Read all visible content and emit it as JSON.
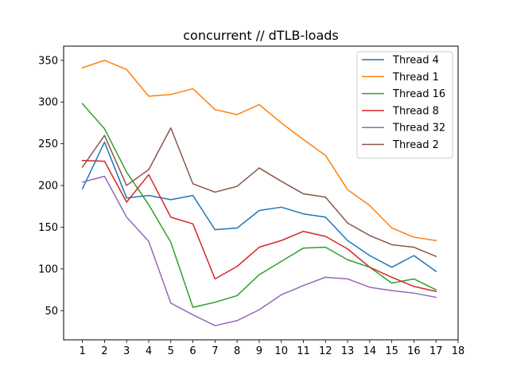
{
  "chart_data": {
    "type": "line",
    "title": "concurrent // dTLB-loads",
    "xlabel": "",
    "ylabel": "",
    "x": [
      1,
      2,
      3,
      4,
      5,
      6,
      7,
      8,
      9,
      10,
      11,
      12,
      13,
      14,
      15,
      16,
      17
    ],
    "x_ticks": [
      1,
      2,
      3,
      4,
      5,
      6,
      7,
      8,
      9,
      10,
      11,
      12,
      13,
      14,
      15,
      16,
      17,
      18
    ],
    "y_ticks": [
      50,
      100,
      150,
      200,
      250,
      300,
      350
    ],
    "xlim": [
      0.15,
      18.0
    ],
    "ylim": [
      15,
      367
    ],
    "grid": false,
    "legend_position": "top-right",
    "series": [
      {
        "name": "Thread 4",
        "color": "#1f77b4",
        "values": [
          196,
          252,
          185,
          188,
          183,
          188,
          147,
          149,
          170,
          174,
          166,
          162,
          134,
          116,
          102,
          116,
          97
        ]
      },
      {
        "name": "Thread 1",
        "color": "#ff7f0e",
        "values": [
          341,
          350,
          339,
          307,
          309,
          316,
          291,
          285,
          297,
          275,
          255,
          236,
          195,
          176,
          149,
          138,
          134
        ]
      },
      {
        "name": "Thread 16",
        "color": "#2ca02c",
        "values": [
          298,
          268,
          216,
          177,
          132,
          54,
          60,
          68,
          93,
          109,
          125,
          126,
          111,
          102,
          83,
          88,
          75
        ]
      },
      {
        "name": "Thread 8",
        "color": "#d62728",
        "values": [
          230,
          229,
          180,
          213,
          162,
          154,
          88,
          103,
          126,
          134,
          145,
          139,
          124,
          102,
          90,
          79,
          73
        ]
      },
      {
        "name": "Thread 32",
        "color": "#9467bd",
        "values": [
          204,
          211,
          162,
          133,
          59,
          45,
          32,
          38,
          51,
          69,
          80,
          90,
          88,
          78,
          74,
          71,
          66
        ]
      },
      {
        "name": "Thread 2",
        "color": "#8c564b",
        "values": [
          222,
          260,
          200,
          219,
          269,
          202,
          192,
          199,
          221,
          205,
          190,
          186,
          155,
          140,
          129,
          126,
          115
        ]
      }
    ]
  }
}
